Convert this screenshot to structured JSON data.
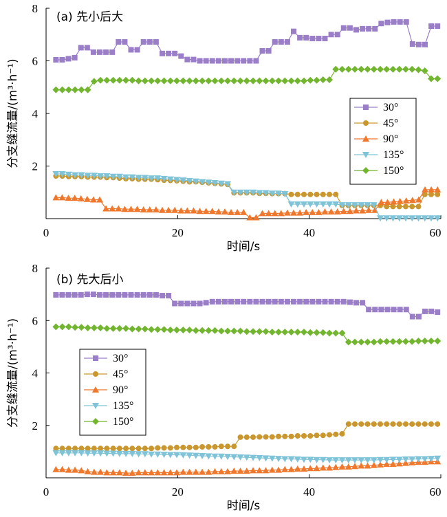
{
  "chart_data": [
    {
      "type": "line",
      "title": "(a) 先小后大",
      "xlabel": "时间/s",
      "ylabel": "分支缝流量/(m³·h⁻¹)",
      "xlim": [
        0,
        60
      ],
      "ylim": [
        0,
        8
      ],
      "xticks": [
        "0",
        "20",
        "40",
        "60"
      ],
      "yticks": [
        "2",
        "4",
        "6",
        "8"
      ],
      "x_start": 1.5,
      "x_end": 59.5,
      "legend_position": "center-right",
      "series": [
        {
          "name": "30°",
          "color": "#9b7ec8",
          "marker": "square",
          "values": [
            6.04,
            6.04,
            6.08,
            6.12,
            6.5,
            6.5,
            6.33,
            6.33,
            6.33,
            6.33,
            6.72,
            6.72,
            6.42,
            6.42,
            6.72,
            6.72,
            6.72,
            6.28,
            6.28,
            6.28,
            6.18,
            6.05,
            6.05,
            6.0,
            6.0,
            6.0,
            6.0,
            6.0,
            6.0,
            6.0,
            6.0,
            6.0,
            6.0,
            6.38,
            6.38,
            6.72,
            6.72,
            6.72,
            7.12,
            6.88,
            6.88,
            6.85,
            6.85,
            6.85,
            7.0,
            7.0,
            7.25,
            7.25,
            7.18,
            7.22,
            7.22,
            7.22,
            7.42,
            7.46,
            7.48,
            7.48,
            7.48,
            6.64,
            6.62,
            6.62,
            7.32,
            7.32
          ]
        },
        {
          "name": "45°",
          "color": "#c9972e",
          "marker": "circle",
          "values": [
            1.62,
            1.62,
            1.6,
            1.6,
            1.6,
            1.58,
            1.58,
            1.58,
            1.56,
            1.56,
            1.54,
            1.52,
            1.52,
            1.5,
            1.5,
            1.5,
            1.48,
            1.46,
            1.45,
            1.44,
            1.42,
            1.4,
            1.4,
            1.38,
            1.36,
            1.34,
            1.32,
            1.3,
            0.98,
            0.98,
            0.98,
            0.98,
            0.96,
            0.96,
            0.95,
            0.95,
            0.95,
            0.92,
            0.92,
            0.92,
            0.92,
            0.92,
            0.92,
            0.92,
            0.92,
            0.5,
            0.5,
            0.5,
            0.5,
            0.5,
            0.5,
            0.5,
            0.46,
            0.46,
            0.46,
            0.46,
            0.46,
            0.46,
            0.92,
            0.92,
            0.92
          ]
        },
        {
          "name": "90°",
          "color": "#f0782c",
          "marker": "triangle-up",
          "values": [
            0.8,
            0.8,
            0.78,
            0.78,
            0.76,
            0.74,
            0.72,
            0.72,
            0.38,
            0.38,
            0.38,
            0.36,
            0.36,
            0.36,
            0.34,
            0.34,
            0.34,
            0.32,
            0.32,
            0.32,
            0.3,
            0.3,
            0.3,
            0.28,
            0.28,
            0.28,
            0.26,
            0.26,
            0.24,
            0.24,
            0.24,
            0.04,
            0.04,
            0.2,
            0.2,
            0.2,
            0.2,
            0.22,
            0.22,
            0.22,
            0.24,
            0.24,
            0.24,
            0.26,
            0.26,
            0.26,
            0.28,
            0.28,
            0.3,
            0.3,
            0.32,
            0.32,
            0.62,
            0.62,
            0.64,
            0.66,
            0.68,
            0.7,
            0.72,
            1.1,
            1.1,
            1.1
          ]
        },
        {
          "name": "135°",
          "color": "#7ec3d8",
          "marker": "triangle-down",
          "values": [
            1.7,
            1.7,
            1.68,
            1.66,
            1.66,
            1.64,
            1.64,
            1.62,
            1.62,
            1.6,
            1.6,
            1.58,
            1.58,
            1.56,
            1.56,
            1.54,
            1.54,
            1.52,
            1.5,
            1.48,
            1.46,
            1.44,
            1.42,
            1.4,
            1.38,
            1.36,
            1.34,
            1.32,
            1.0,
            1.0,
            1.0,
            1.0,
            0.98,
            0.98,
            0.96,
            0.96,
            0.94,
            0.55,
            0.55,
            0.55,
            0.55,
            0.55,
            0.55,
            0.55,
            0.55,
            0.52,
            0.52,
            0.52,
            0.52,
            0.52,
            0.52,
            0.02,
            0.02,
            0.02,
            0.02,
            0.02,
            0.02,
            0.02,
            0.02,
            0.02,
            0.02
          ]
        },
        {
          "name": "150°",
          "color": "#72b52e",
          "marker": "diamond",
          "values": [
            4.9,
            4.9,
            4.9,
            4.9,
            4.9,
            4.9,
            5.22,
            5.26,
            5.26,
            5.26,
            5.26,
            5.26,
            5.26,
            5.24,
            5.24,
            5.24,
            5.24,
            5.24,
            5.24,
            5.24,
            5.24,
            5.24,
            5.24,
            5.24,
            5.24,
            5.24,
            5.24,
            5.24,
            5.24,
            5.24,
            5.24,
            5.24,
            5.24,
            5.24,
            5.24,
            5.24,
            5.24,
            5.24,
            5.24,
            5.24,
            5.26,
            5.26,
            5.28,
            5.28,
            5.68,
            5.68,
            5.68,
            5.68,
            5.68,
            5.68,
            5.68,
            5.68,
            5.68,
            5.68,
            5.68,
            5.68,
            5.68,
            5.66,
            5.62,
            5.32,
            5.32
          ]
        }
      ]
    },
    {
      "type": "line",
      "title": "(b) 先大后小",
      "xlabel": "时间/s",
      "ylabel": "分支缝流量/(m³·h⁻¹)",
      "xlim": [
        0,
        60
      ],
      "ylim": [
        0,
        8
      ],
      "xticks": [
        "0",
        "20",
        "40",
        "60"
      ],
      "yticks": [
        "2",
        "4",
        "6",
        "8"
      ],
      "x_start": 1.5,
      "x_end": 59.5,
      "legend_position": "center-left",
      "series": [
        {
          "name": "30°",
          "color": "#9b7ec8",
          "marker": "square",
          "values": [
            6.98,
            6.98,
            6.98,
            6.98,
            6.98,
            7.0,
            7.0,
            6.98,
            6.98,
            6.98,
            6.98,
            6.98,
            6.98,
            6.98,
            6.98,
            6.98,
            6.98,
            6.95,
            6.95,
            6.65,
            6.65,
            6.65,
            6.65,
            6.65,
            6.68,
            6.72,
            6.72,
            6.72,
            6.72,
            6.72,
            6.72,
            6.72,
            6.72,
            6.72,
            6.72,
            6.72,
            6.72,
            6.72,
            6.72,
            6.72,
            6.72,
            6.72,
            6.72,
            6.72,
            6.72,
            6.72,
            6.72,
            6.7,
            6.68,
            6.68,
            6.42,
            6.42,
            6.42,
            6.42,
            6.42,
            6.42,
            6.42,
            6.15,
            6.15,
            6.35,
            6.35,
            6.32
          ]
        },
        {
          "name": "45°",
          "color": "#c9972e",
          "marker": "circle",
          "values": [
            1.12,
            1.12,
            1.12,
            1.12,
            1.12,
            1.12,
            1.12,
            1.12,
            1.12,
            1.12,
            1.12,
            1.12,
            1.12,
            1.12,
            1.12,
            1.12,
            1.14,
            1.14,
            1.14,
            1.16,
            1.16,
            1.16,
            1.16,
            1.18,
            1.18,
            1.18,
            1.2,
            1.2,
            1.2,
            1.55,
            1.55,
            1.55,
            1.56,
            1.56,
            1.56,
            1.58,
            1.58,
            1.58,
            1.6,
            1.6,
            1.6,
            1.62,
            1.62,
            1.64,
            1.66,
            1.68,
            2.05,
            2.05,
            2.05,
            2.05,
            2.05,
            2.05,
            2.05,
            2.05,
            2.05,
            2.05,
            2.05,
            2.05,
            2.05,
            2.05,
            2.05
          ]
        },
        {
          "name": "90°",
          "color": "#f0782c",
          "marker": "triangle-up",
          "values": [
            0.32,
            0.32,
            0.3,
            0.3,
            0.28,
            0.24,
            0.22,
            0.22,
            0.2,
            0.2,
            0.2,
            0.18,
            0.18,
            0.2,
            0.2,
            0.2,
            0.2,
            0.2,
            0.2,
            0.2,
            0.22,
            0.22,
            0.22,
            0.22,
            0.22,
            0.24,
            0.24,
            0.24,
            0.26,
            0.26,
            0.26,
            0.28,
            0.28,
            0.28,
            0.3,
            0.3,
            0.32,
            0.32,
            0.34,
            0.34,
            0.36,
            0.36,
            0.38,
            0.38,
            0.4,
            0.42,
            0.42,
            0.44,
            0.46,
            0.46,
            0.48,
            0.5,
            0.52,
            0.52,
            0.54,
            0.56,
            0.58,
            0.6,
            0.6,
            0.62,
            0.62
          ]
        },
        {
          "name": "135°",
          "color": "#7ec3d8",
          "marker": "triangle-down",
          "values": [
            0.95,
            0.95,
            0.95,
            0.95,
            0.95,
            0.94,
            0.94,
            0.94,
            0.93,
            0.93,
            0.92,
            0.92,
            0.92,
            0.91,
            0.91,
            0.9,
            0.9,
            0.89,
            0.88,
            0.88,
            0.87,
            0.86,
            0.85,
            0.84,
            0.83,
            0.82,
            0.82,
            0.81,
            0.8,
            0.79,
            0.78,
            0.77,
            0.76,
            0.75,
            0.74,
            0.73,
            0.72,
            0.72,
            0.71,
            0.7,
            0.7,
            0.69,
            0.69,
            0.68,
            0.68,
            0.68,
            0.68,
            0.68,
            0.68,
            0.68,
            0.68,
            0.69,
            0.69,
            0.7,
            0.7,
            0.71,
            0.71,
            0.72,
            0.72,
            0.73,
            0.74
          ]
        },
        {
          "name": "150°",
          "color": "#72b52e",
          "marker": "diamond",
          "values": [
            5.76,
            5.76,
            5.76,
            5.74,
            5.74,
            5.72,
            5.72,
            5.72,
            5.7,
            5.7,
            5.7,
            5.7,
            5.68,
            5.68,
            5.68,
            5.66,
            5.66,
            5.66,
            5.64,
            5.64,
            5.64,
            5.64,
            5.62,
            5.62,
            5.62,
            5.62,
            5.6,
            5.6,
            5.6,
            5.6,
            5.58,
            5.58,
            5.58,
            5.58,
            5.56,
            5.56,
            5.56,
            5.56,
            5.56,
            5.56,
            5.54,
            5.54,
            5.54,
            5.52,
            5.52,
            5.52,
            5.18,
            5.18,
            5.18,
            5.18,
            5.18,
            5.2,
            5.2,
            5.2,
            5.2,
            5.2,
            5.2,
            5.22,
            5.22,
            5.22,
            5.22
          ]
        }
      ]
    }
  ]
}
